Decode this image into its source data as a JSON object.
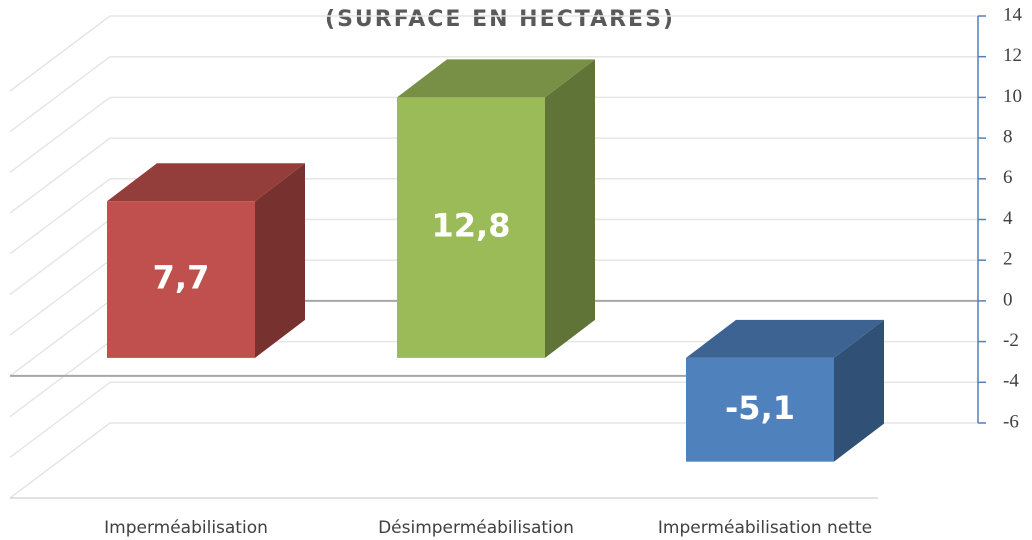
{
  "chart_data": {
    "type": "bar3d",
    "title": "(SURFACE EN HECTARES)",
    "categories": [
      "Imperméabilisation",
      "Désimperméabilisation",
      "Imperméabilisation nette"
    ],
    "values": [
      7.7,
      12.8,
      -5.1
    ],
    "value_labels": [
      "7,7",
      "12,8",
      "-5,1"
    ],
    "colors": [
      "#c0504d",
      "#9bbb59",
      "#4f81bd"
    ],
    "ylim": [
      -6,
      14
    ],
    "yticks": [
      -6,
      -4,
      -2,
      0,
      2,
      4,
      6,
      8,
      10,
      12,
      14
    ],
    "grid": true
  }
}
